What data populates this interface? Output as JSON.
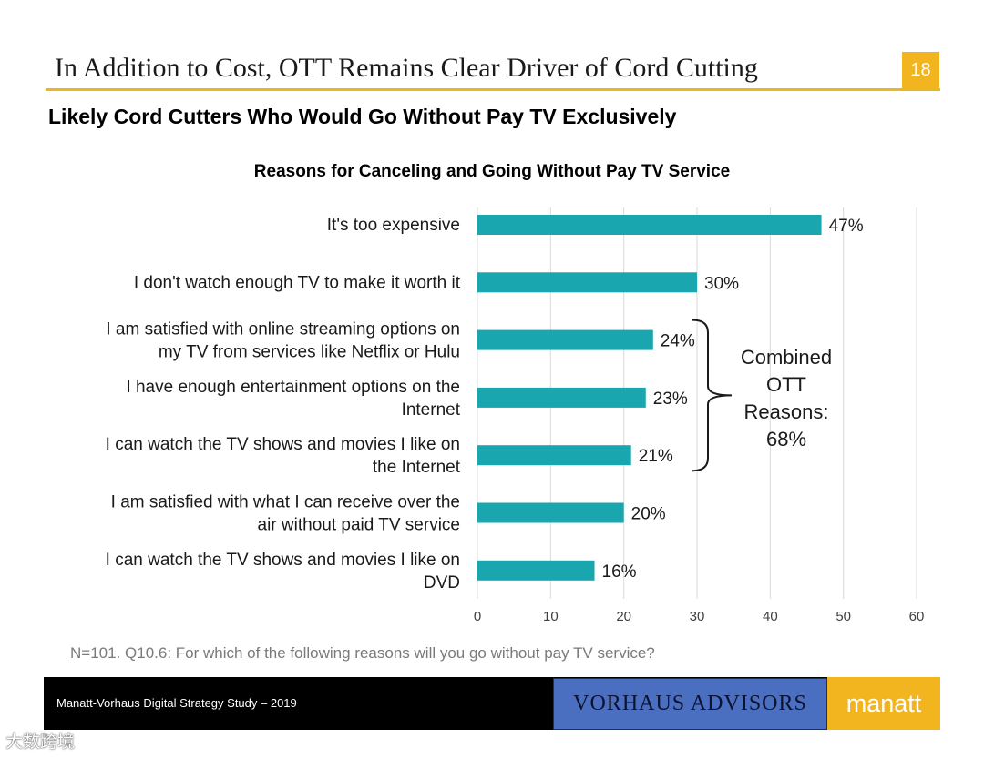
{
  "header": {
    "title": "In Addition to Cost, OTT Remains Clear Driver of Cord Cutting",
    "page_number": "18",
    "accent_color": "#f2b41f"
  },
  "subtitle": "Likely Cord Cutters Who Would Go Without Pay TV Exclusively",
  "chart_data": {
    "type": "bar",
    "orientation": "horizontal",
    "title": "Reasons for Canceling and Going Without Pay TV Service",
    "categories": [
      [
        "It's too expensive"
      ],
      [
        "I don't watch enough TV to make it worth it"
      ],
      [
        "I am satisfied with online streaming options on",
        "my TV from services like Netflix or Hulu"
      ],
      [
        "I have enough entertainment options on the",
        "Internet"
      ],
      [
        "I can watch the TV shows and movies I like on",
        "the Internet"
      ],
      [
        "I am satisfied with what I can receive over the",
        "air without paid TV service"
      ],
      [
        "I can watch the TV shows and movies I like on",
        "DVD"
      ]
    ],
    "values": [
      47,
      30,
      24,
      23,
      21,
      20,
      16
    ],
    "data_labels": [
      "47%",
      "30%",
      "24%",
      "23%",
      "21%",
      "20%",
      "16%"
    ],
    "xlim": [
      0,
      60
    ],
    "xticks": [
      0,
      10,
      20,
      30,
      40,
      50,
      60
    ],
    "grid": true,
    "bar_color": "#1aa6ae",
    "annotation": {
      "text": [
        "Combined",
        "OTT",
        "Reasons:",
        "68%"
      ],
      "bracket_rows": [
        2,
        4
      ]
    }
  },
  "footnote": "N=101. Q10.6: For which of the following reasons will you go without pay TV service?",
  "footer": {
    "study": "Manatt-Vorhaus Digital Strategy Study – 2019",
    "vorhaus_logo": "VORHAUS ADVISORS",
    "manatt_logo": "manatt"
  },
  "watermark": "大数跨境"
}
